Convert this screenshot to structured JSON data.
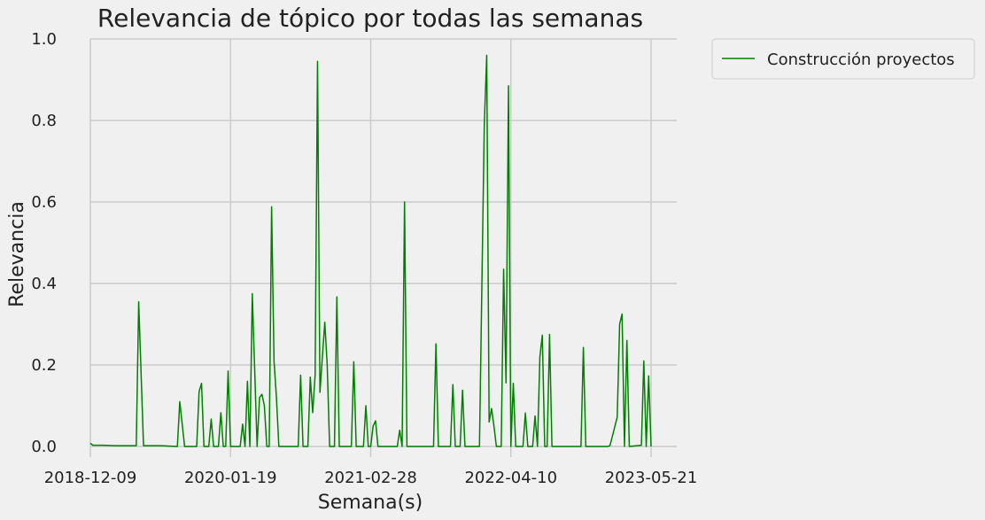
{
  "chart_data": {
    "type": "line",
    "title": "Relevancia de tópico por todas las semanas",
    "xlabel": "Semana(s)",
    "ylabel": "Relevancia",
    "ylim": [
      0,
      1.0
    ],
    "xlim": [
      "2018-12-09",
      "2023-05-21"
    ],
    "x_ticks": [
      "2018-12-09",
      "2020-01-19",
      "2021-02-28",
      "2022-04-10",
      "2023-05-21"
    ],
    "y_ticks": [
      "0.0",
      "0.2",
      "0.4",
      "0.6",
      "0.8",
      "1.0"
    ],
    "grid": true,
    "legend_position": "upper-right-outside",
    "series": [
      {
        "name": "Construcción proyectos",
        "color": "#008000",
        "points": [
          [
            "2018-12-09",
            0.008
          ],
          [
            "2018-12-16",
            0.003
          ],
          [
            "2019-01-13",
            0.003
          ],
          [
            "2019-02-24",
            0.002
          ],
          [
            "2019-04-14",
            0.002
          ],
          [
            "2019-04-21",
            0.002
          ],
          [
            "2019-04-28",
            0.355
          ],
          [
            "2019-05-12",
            0.002
          ],
          [
            "2019-06-30",
            0.002
          ],
          [
            "2019-08-18",
            0.0
          ],
          [
            "2019-08-25",
            0.11
          ],
          [
            "2019-09-08",
            0.0
          ],
          [
            "2019-10-13",
            0.0
          ],
          [
            "2019-10-20",
            0.135
          ],
          [
            "2019-10-27",
            0.155
          ],
          [
            "2019-11-03",
            0.0
          ],
          [
            "2019-11-17",
            0.0
          ],
          [
            "2019-11-24",
            0.067
          ],
          [
            "2019-12-01",
            0.0
          ],
          [
            "2019-12-15",
            0.0
          ],
          [
            "2019-12-22",
            0.083
          ],
          [
            "2019-12-29",
            0.0
          ],
          [
            "2020-01-05",
            0.0
          ],
          [
            "2020-01-12",
            0.185
          ],
          [
            "2020-01-19",
            0.0
          ],
          [
            "2020-02-16",
            0.0
          ],
          [
            "2020-02-23",
            0.055
          ],
          [
            "2020-03-01",
            0.0
          ],
          [
            "2020-03-08",
            0.16
          ],
          [
            "2020-03-15",
            0.0
          ],
          [
            "2020-03-22",
            0.375
          ],
          [
            "2020-04-05",
            0.0
          ],
          [
            "2020-04-12",
            0.12
          ],
          [
            "2020-04-19",
            0.128
          ],
          [
            "2020-04-26",
            0.1
          ],
          [
            "2020-05-03",
            0.0
          ],
          [
            "2020-05-10",
            0.0
          ],
          [
            "2020-05-17",
            0.588
          ],
          [
            "2020-05-24",
            0.21
          ],
          [
            "2020-05-31",
            0.12
          ],
          [
            "2020-06-07",
            0.0
          ],
          [
            "2020-08-02",
            0.0
          ],
          [
            "2020-08-09",
            0.175
          ],
          [
            "2020-08-16",
            0.0
          ],
          [
            "2020-08-30",
            0.0
          ],
          [
            "2020-09-06",
            0.17
          ],
          [
            "2020-09-13",
            0.083
          ],
          [
            "2020-09-20",
            0.175
          ],
          [
            "2020-09-27",
            0.945
          ],
          [
            "2020-10-04",
            0.133
          ],
          [
            "2020-10-18",
            0.305
          ],
          [
            "2020-10-25",
            0.2
          ],
          [
            "2020-11-01",
            0.0
          ],
          [
            "2020-11-08",
            0.0
          ],
          [
            "2020-11-15",
            0.0
          ],
          [
            "2020-11-22",
            0.367
          ],
          [
            "2020-11-29",
            0.0
          ],
          [
            "2021-01-03",
            0.0
          ],
          [
            "2021-01-10",
            0.208
          ],
          [
            "2021-01-17",
            0.0
          ],
          [
            "2021-01-31",
            0.0
          ],
          [
            "2021-02-07",
            0.0
          ],
          [
            "2021-02-14",
            0.1
          ],
          [
            "2021-02-21",
            0.0
          ],
          [
            "2021-02-28",
            0.0
          ],
          [
            "2021-03-07",
            0.05
          ],
          [
            "2021-03-14",
            0.063
          ],
          [
            "2021-03-21",
            0.0
          ],
          [
            "2021-05-16",
            0.0
          ],
          [
            "2021-05-23",
            0.04
          ],
          [
            "2021-05-30",
            0.0
          ],
          [
            "2021-06-06",
            0.6
          ],
          [
            "2021-06-13",
            0.0
          ],
          [
            "2021-08-22",
            0.0
          ],
          [
            "2021-08-29",
            0.0
          ],
          [
            "2021-09-05",
            0.252
          ],
          [
            "2021-09-12",
            0.0
          ],
          [
            "2021-10-17",
            0.0
          ],
          [
            "2021-10-24",
            0.152
          ],
          [
            "2021-10-31",
            0.0
          ],
          [
            "2021-11-07",
            0.0
          ],
          [
            "2021-11-14",
            0.0
          ],
          [
            "2021-11-21",
            0.138
          ],
          [
            "2021-11-28",
            0.0
          ],
          [
            "2022-01-09",
            0.0
          ],
          [
            "2022-01-23",
            0.79
          ],
          [
            "2022-01-30",
            0.96
          ],
          [
            "2022-02-06",
            0.06
          ],
          [
            "2022-02-13",
            0.093
          ],
          [
            "2022-02-20",
            0.05
          ],
          [
            "2022-02-27",
            0.0
          ],
          [
            "2022-03-06",
            0.0
          ],
          [
            "2022-03-13",
            0.0
          ],
          [
            "2022-03-20",
            0.435
          ],
          [
            "2022-03-27",
            0.156
          ],
          [
            "2022-04-03",
            0.885
          ],
          [
            "2022-04-10",
            0.0
          ],
          [
            "2022-04-17",
            0.155
          ],
          [
            "2022-04-24",
            0.0
          ],
          [
            "2022-05-01",
            0.0
          ],
          [
            "2022-05-15",
            0.0
          ],
          [
            "2022-05-22",
            0.082
          ],
          [
            "2022-05-29",
            0.0
          ],
          [
            "2022-06-12",
            0.0
          ],
          [
            "2022-06-19",
            0.075
          ],
          [
            "2022-06-26",
            0.0
          ],
          [
            "2022-07-03",
            0.22
          ],
          [
            "2022-07-10",
            0.273
          ],
          [
            "2022-07-17",
            0.0
          ],
          [
            "2022-07-24",
            0.0
          ],
          [
            "2022-07-31",
            0.275
          ],
          [
            "2022-08-07",
            0.0
          ],
          [
            "2022-09-04",
            0.0
          ],
          [
            "2022-12-18",
            0.0
          ],
          [
            "2022-10-30",
            0.0
          ],
          [
            "2022-11-06",
            0.243
          ],
          [
            "2022-11-13",
            0.0
          ],
          [
            "2023-01-15",
            0.0
          ],
          [
            "2023-01-22",
            0.002
          ],
          [
            "2023-02-12",
            0.072
          ],
          [
            "2023-02-19",
            0.3
          ],
          [
            "2023-02-26",
            0.325
          ],
          [
            "2023-03-05",
            0.0
          ],
          [
            "2023-03-12",
            0.26
          ],
          [
            "2023-03-19",
            0.0
          ],
          [
            "2023-04-23",
            0.003
          ],
          [
            "2023-04-30",
            0.21
          ],
          [
            "2023-05-07",
            0.0
          ],
          [
            "2023-05-14",
            0.173
          ],
          [
            "2023-05-21",
            0.0
          ]
        ]
      }
    ]
  }
}
